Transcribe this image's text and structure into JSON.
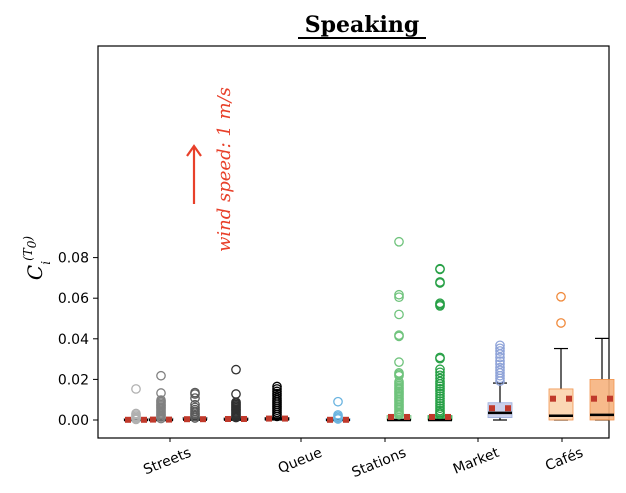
{
  "chart_data": {
    "type": "box",
    "title": "Speaking",
    "ylabel": "C_i^(T_0)",
    "ylim": [
      -0.002,
      0.09
    ],
    "yticks": [
      0.0,
      0.02,
      0.04,
      0.06,
      0.08
    ],
    "ytick_labels": [
      "0.00",
      "0.02",
      "0.04",
      "0.06",
      "0.08"
    ],
    "categories": [
      "Streets",
      "Queue",
      "Stations",
      "Market",
      "Cafés"
    ],
    "annotation": "wind speed: 1 m/s",
    "colors": {
      "annotation": "#e8402a",
      "mean_marker": "#c0392b",
      "median": "#000000"
    },
    "series": [
      {
        "group": 0,
        "x": 1,
        "color": "#b0b0b0",
        "fill": "#d9d9d9",
        "q1": 0.0,
        "q3": 0.0003,
        "median": 0.0,
        "mean": 0.0001,
        "whisker_low": 0.0,
        "whisker_high": 0.0003,
        "outliers": [
          0.0153,
          0.0032,
          0.0025,
          0.0018,
          0.0012,
          0.0008,
          0.0003
        ]
      },
      {
        "group": 0,
        "x": 2,
        "color": "#808080",
        "fill": "#a0a0a0",
        "q1": 0.0,
        "q3": 0.0004,
        "median": 0.0,
        "mean": 0.0002,
        "whisker_low": 0.0,
        "whisker_high": 0.0004,
        "outliers": [
          0.0218,
          0.0133,
          0.0098,
          0.009,
          0.0083,
          0.0076,
          0.007,
          0.0063,
          0.0056,
          0.0049,
          0.0042,
          0.0035,
          0.0028,
          0.0021,
          0.0014,
          0.0007
        ]
      },
      {
        "group": 0,
        "x": 3,
        "color": "#5a5a5a",
        "fill": "#707070",
        "q1": 0.0,
        "q3": 0.0008,
        "median": 0.0002,
        "mean": 0.0004,
        "whisker_low": 0.0,
        "whisker_high": 0.0008,
        "outliers": [
          0.0135,
          0.0128,
          0.0108,
          0.0075,
          0.0062,
          0.0051,
          0.0042,
          0.0034,
          0.0026,
          0.0018,
          0.001
        ]
      },
      {
        "group": 0,
        "x": 4,
        "color": "#303030",
        "fill": "#404040",
        "q1": 0.0,
        "q3": 0.001,
        "median": 0.0002,
        "mean": 0.0005,
        "whisker_low": 0.0,
        "whisker_high": 0.001,
        "outliers": [
          0.0248,
          0.0128,
          0.0088,
          0.0082,
          0.0076,
          0.007,
          0.0064,
          0.0058,
          0.0052,
          0.0046,
          0.004,
          0.0034,
          0.0028,
          0.0022,
          0.0016,
          0.0012
        ]
      },
      {
        "group": 0,
        "x": 5,
        "color": "#000000",
        "fill": "#111111",
        "q1": 0.0,
        "q3": 0.0012,
        "median": 0.0003,
        "mean": 0.0007,
        "whisker_low": 0.0,
        "whisker_high": 0.0012,
        "outliers": [
          0.0165,
          0.0153,
          0.0141,
          0.013,
          0.0119,
          0.0108,
          0.0098,
          0.0088,
          0.0078,
          0.0068,
          0.0058,
          0.0048,
          0.0038,
          0.0028,
          0.0018
        ]
      },
      {
        "group": 1,
        "x": 6.5,
        "color": "#6bb4e0",
        "fill": "#a9d4ef",
        "q1": 0.0,
        "q3": 0.0002,
        "median": 0.0,
        "mean": 0.0001,
        "whisker_low": 0.0,
        "whisker_high": 0.0002,
        "outliers": [
          0.009,
          0.0025,
          0.0018,
          0.0011,
          0.0005
        ]
      },
      {
        "group": 2,
        "x": 8,
        "color": "#6fc37c",
        "fill": "#a8dcaf",
        "q1": 0.0,
        "q3": 0.0022,
        "median": 0.0,
        "mean": 0.0015,
        "whisker_low": 0.0,
        "whisker_high": 0.0022,
        "outliers": [
          0.0878,
          0.0617,
          0.0605,
          0.052,
          0.0418,
          0.0412,
          0.0285,
          0.0232,
          0.0225,
          0.0218,
          0.0188,
          0.0178,
          0.017,
          0.0162,
          0.0155,
          0.0148,
          0.014,
          0.0132,
          0.0124,
          0.0116,
          0.0108,
          0.01,
          0.0092,
          0.0084,
          0.0076,
          0.0068,
          0.006,
          0.0052,
          0.0044,
          0.0036,
          0.003,
          0.0026
        ]
      },
      {
        "group": 2,
        "x": 9,
        "color": "#27a046",
        "fill": "#3fb55a",
        "q1": 0.0,
        "q3": 0.0022,
        "median": 0.0,
        "mean": 0.0015,
        "whisker_low": 0.0,
        "whisker_high": 0.0022,
        "outliers": [
          0.0745,
          0.0742,
          0.068,
          0.0675,
          0.0575,
          0.0568,
          0.0562,
          0.0308,
          0.0302,
          0.025,
          0.0235,
          0.022,
          0.0205,
          0.019,
          0.0178,
          0.0166,
          0.0154,
          0.0142,
          0.013,
          0.0118,
          0.0106,
          0.0094,
          0.0082,
          0.007,
          0.0058,
          0.0046,
          0.0036,
          0.0028
        ]
      },
      {
        "group": 3,
        "x": 10.5,
        "color": "#8fa3d8",
        "fill": "#c6cde9",
        "q1": 0.0012,
        "q3": 0.0085,
        "median": 0.0035,
        "mean": 0.0058,
        "whisker_low": 0.0,
        "whisker_high": 0.0182,
        "outliers": [
          0.0368,
          0.0353,
          0.034,
          0.0325,
          0.0308,
          0.029,
          0.0275,
          0.0258,
          0.0245,
          0.0232,
          0.0218,
          0.0205,
          0.0192
        ]
      },
      {
        "group": 4,
        "x": 12,
        "color": "#f08a3c",
        "fill": "#fbd3ae",
        "q1": 0.0,
        "q3": 0.0153,
        "median": 0.0021,
        "mean": 0.0105,
        "whisker_low": 0.0,
        "whisker_high": 0.0352,
        "outliers": [
          0.0607,
          0.0478
        ]
      },
      {
        "group": 4,
        "x": 13,
        "color": "#f08a3c",
        "fill": "#f7b37f",
        "q1": 0.0,
        "q3": 0.02,
        "median": 0.0025,
        "mean": 0.0105,
        "whisker_low": 0.0,
        "whisker_high": 0.0402,
        "outliers": []
      }
    ]
  }
}
